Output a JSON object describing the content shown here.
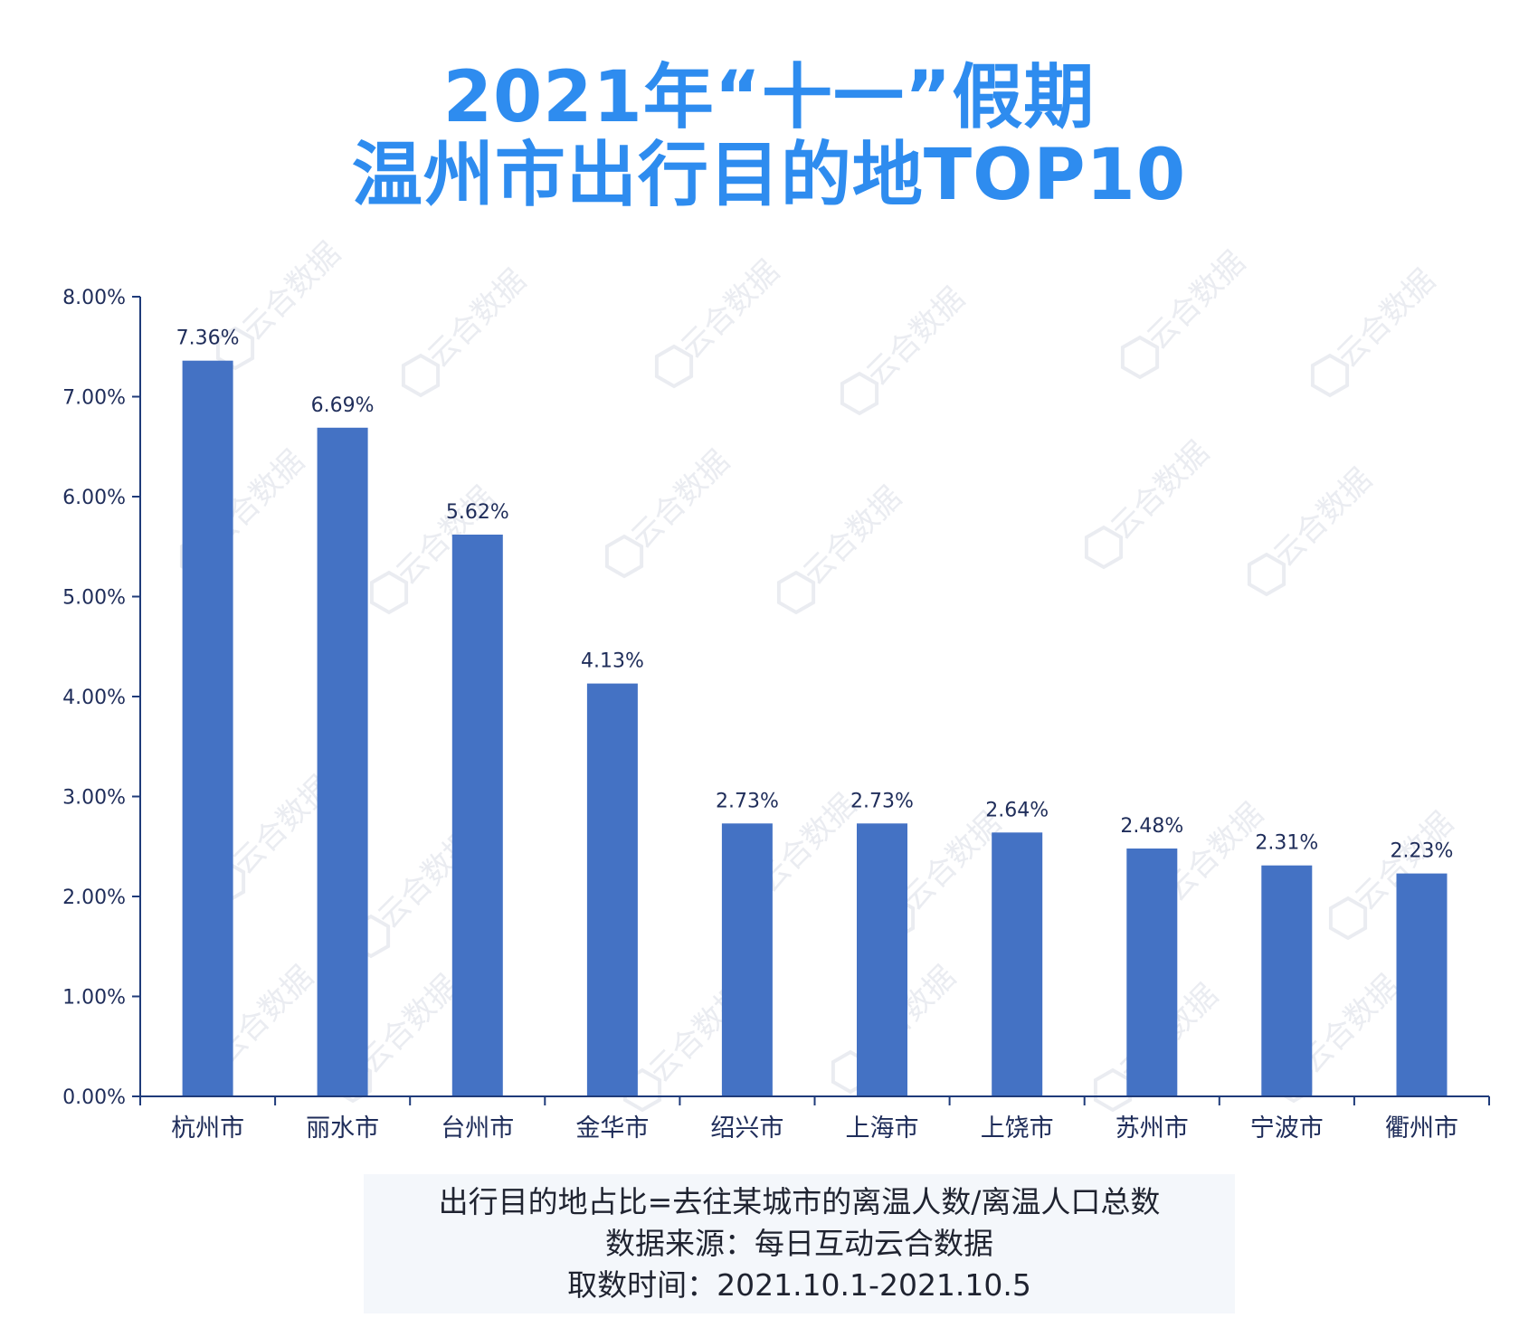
{
  "title": {
    "line1": "2021年“十一”假期",
    "line2": "温州市出行目的地TOP10",
    "color": "#2e8cef"
  },
  "notes": {
    "definition": "出行目的地占比=去往某城市的离温人数/离温人口总数",
    "source": "数据来源：每日互动云合数据",
    "period": "取数时间：2021.10.1-2021.10.5"
  },
  "watermark": {
    "text": "云合数据"
  },
  "chart_data": {
    "type": "bar",
    "title": "2021年“十一”假期 温州市出行目的地TOP10",
    "xlabel": "",
    "ylabel": "",
    "categories": [
      "杭州市",
      "丽水市",
      "台州市",
      "金华市",
      "绍兴市",
      "上海市",
      "上饶市",
      "苏州市",
      "宁波市",
      "衢州市"
    ],
    "values": [
      7.36,
      6.69,
      5.62,
      4.13,
      2.73,
      2.73,
      2.64,
      2.48,
      2.31,
      2.23
    ],
    "value_labels": [
      "7.36%",
      "6.69%",
      "5.62%",
      "4.13%",
      "2.73%",
      "2.73%",
      "2.64%",
      "2.48%",
      "2.31%",
      "2.23%"
    ],
    "ylim": [
      0,
      8
    ],
    "yticks": [
      "0.00%",
      "1.00%",
      "2.00%",
      "3.00%",
      "4.00%",
      "5.00%",
      "6.00%",
      "7.00%",
      "8.00%"
    ],
    "grid": false,
    "bar_color": "#4472c4",
    "axis_color": "#1f3b7a",
    "label_color": "#1f2d5a"
  }
}
